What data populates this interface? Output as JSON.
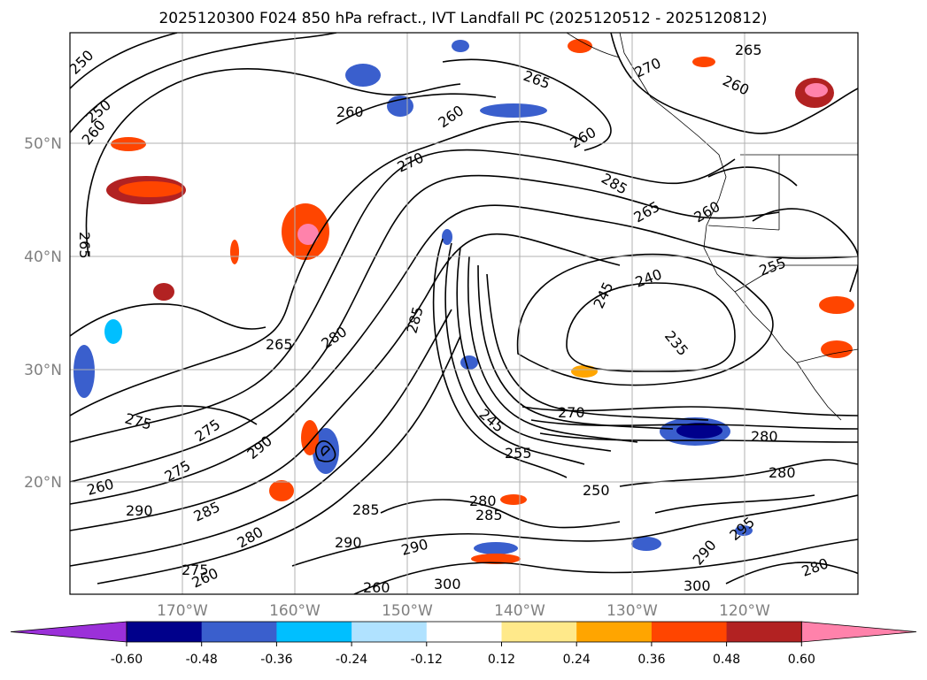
{
  "title": "2025120300 F024 850 hPa refract., IVT Landfall PC (2025120512 - 2025120812)",
  "map": {
    "lat_labels": [
      "50°N",
      "40°N",
      "30°N",
      "20°N"
    ],
    "lon_labels": [
      "170°W",
      "160°W",
      "150°W",
      "140°W",
      "130°W",
      "120°W"
    ],
    "contour_labels": [
      "250",
      "250",
      "260",
      "265",
      "260",
      "260",
      "265",
      "270",
      "265",
      "260",
      "260",
      "270",
      "285",
      "265",
      "260",
      "255",
      "240",
      "245",
      "235",
      "285",
      "275",
      "265",
      "280",
      "275",
      "290",
      "275",
      "260",
      "290",
      "285",
      "280",
      "275",
      "260",
      "250",
      "280",
      "285",
      "290",
      "290",
      "260",
      "300",
      "300",
      "280",
      "280",
      "295",
      "290",
      "280",
      "285",
      "270",
      "245",
      "255"
    ],
    "colors": {
      "land_outline": "#000000",
      "grid": "#b0b0b0",
      "frame": "#000000",
      "contour": "#000000"
    }
  },
  "colorbar": {
    "ticks": [
      "-0.60",
      "-0.48",
      "-0.36",
      "-0.24",
      "-0.12",
      "0.12",
      "0.24",
      "0.36",
      "0.48",
      "0.60"
    ],
    "colors": [
      "#9b30d9",
      "#00008b",
      "#3a5fcd",
      "#00bfff",
      "#b0e2ff",
      "#ffffff",
      "#ffe98a",
      "#ffa500",
      "#ff4500",
      "#b22222",
      "#ff82ab"
    ],
    "extend": "both"
  }
}
